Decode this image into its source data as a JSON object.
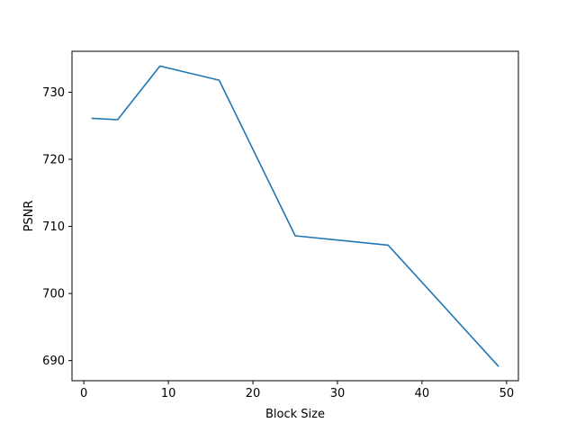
{
  "chart_data": {
    "type": "line",
    "title": "",
    "xlabel": "Block Size",
    "ylabel": "PSNR",
    "xlim": [
      -1.4,
      51.4
    ],
    "ylim": [
      687.0,
      736.1
    ],
    "xticks": [
      0,
      10,
      20,
      30,
      40,
      50
    ],
    "xtick_labels": [
      "0",
      "10",
      "20",
      "30",
      "40",
      "50"
    ],
    "yticks": [
      690,
      700,
      710,
      720,
      730
    ],
    "ytick_labels": [
      "690",
      "700",
      "710",
      "720",
      "730"
    ],
    "grid": false,
    "legend": "none",
    "series": [
      {
        "color": "#1f77b4",
        "x": [
          1,
          4,
          9,
          16,
          25,
          36,
          49
        ],
        "y": [
          726.1,
          725.9,
          733.9,
          731.8,
          708.6,
          707.2,
          689.2
        ]
      }
    ]
  }
}
